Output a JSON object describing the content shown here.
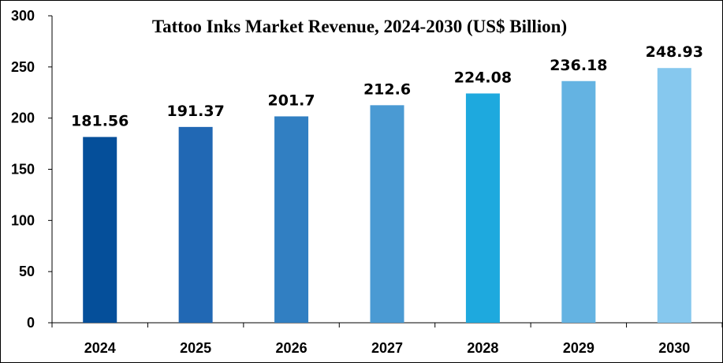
{
  "chart_data": {
    "type": "bar",
    "title": "Tattoo Inks Market Revenue, 2024-2030 (US$ Billion)",
    "xlabel": "",
    "ylabel": "",
    "categories": [
      "2024",
      "2025",
      "2026",
      "2027",
      "2028",
      "2029",
      "2030"
    ],
    "values": [
      181.56,
      191.37,
      201.7,
      212.6,
      224.08,
      236.18,
      248.93
    ],
    "value_labels": [
      "181.56",
      "191.37",
      "201.7",
      "212.6",
      "224.08",
      "236.18",
      "248.93"
    ],
    "ylim": [
      0,
      300
    ],
    "yticks": [
      0,
      50,
      100,
      150,
      200,
      250,
      300
    ],
    "ytick_labels": [
      "0",
      "50",
      "100",
      "150",
      "200",
      "250",
      "300"
    ],
    "bar_colors": [
      "#054f9a",
      "#2168b4",
      "#317fc2",
      "#4a9ad3",
      "#1ea9de",
      "#64b3e2",
      "#86c8ee"
    ],
    "grid": false,
    "legend": "none"
  }
}
